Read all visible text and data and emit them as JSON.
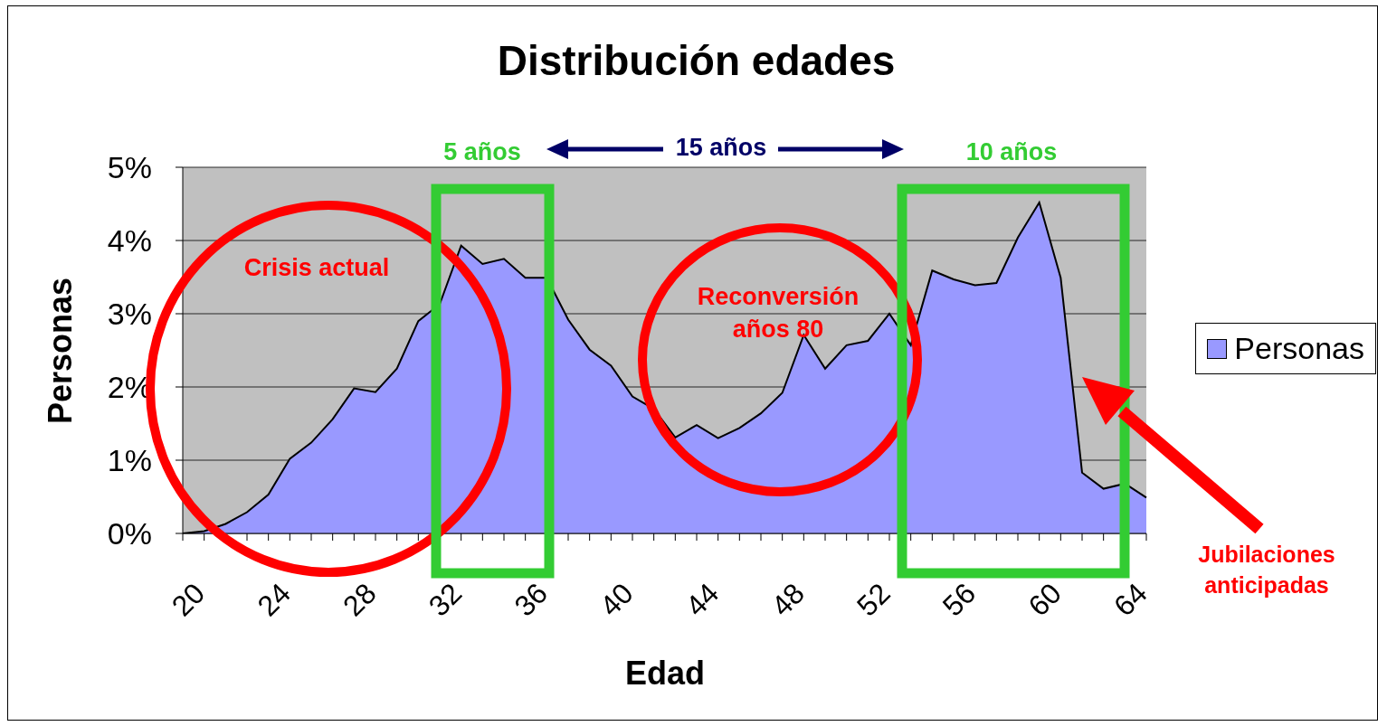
{
  "chart_data": {
    "type": "area",
    "title": "Distribución edades",
    "xlabel": "Edad",
    "ylabel": "Personas",
    "categories": [
      "20",
      null,
      null,
      null,
      "24",
      null,
      null,
      null,
      "28",
      null,
      null,
      null,
      "32",
      null,
      null,
      null,
      "36",
      null,
      null,
      null,
      "40",
      null,
      null,
      null,
      "44",
      null,
      null,
      null,
      "48",
      null,
      null,
      null,
      "52",
      null,
      null,
      null,
      "56",
      null,
      null,
      null,
      "60",
      null,
      null,
      null,
      "64",
      null
    ],
    "series": [
      {
        "name": "Personas",
        "color": "#9999ff",
        "values": [
          0.0,
          0.03,
          0.13,
          0.29,
          0.53,
          1.02,
          1.24,
          1.56,
          1.98,
          1.93,
          2.25,
          2.9,
          3.13,
          3.93,
          3.68,
          3.75,
          3.49,
          3.49,
          2.92,
          2.51,
          2.29,
          1.87,
          1.7,
          1.31,
          1.48,
          1.3,
          1.44,
          1.64,
          1.92,
          2.71,
          2.25,
          2.57,
          2.63,
          3.0,
          2.57,
          3.59,
          3.47,
          3.39,
          3.42,
          4.04,
          4.52,
          3.49,
          0.83,
          0.61,
          0.68,
          0.49
        ]
      }
    ],
    "ylim": [
      0,
      5
    ],
    "yticks": [
      {
        "value": 0,
        "label": "0%"
      },
      {
        "value": 1,
        "label": "1%"
      },
      {
        "value": 2,
        "label": "2%"
      },
      {
        "value": 3,
        "label": "3%"
      },
      {
        "value": 4,
        "label": "4%"
      },
      {
        "value": 5,
        "label": "5%"
      }
    ],
    "grid": "y",
    "legend": "right",
    "annotations": [
      "5 años",
      "15 años",
      "10 años",
      "Crisis actual",
      "Reconversión años 80",
      "Jubilaciones anticipadas"
    ]
  }
}
